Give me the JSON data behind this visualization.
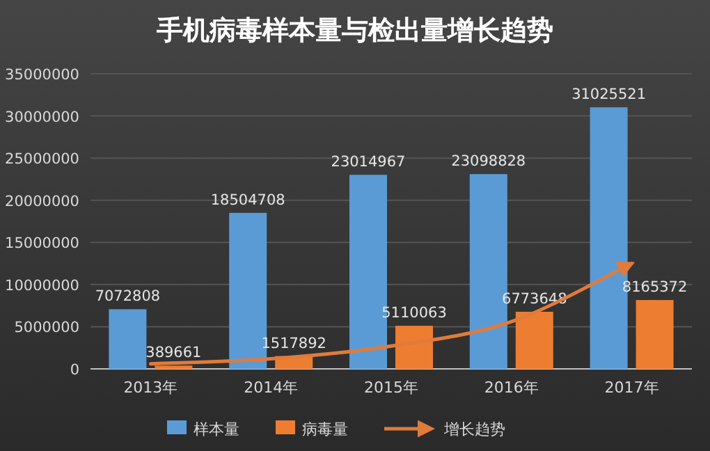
{
  "chart_data": {
    "type": "bar",
    "title": "手机病毒样本量与检出量增长趋势",
    "categories": [
      "2013年",
      "2014年",
      "2015年",
      "2016年",
      "2017年"
    ],
    "series": [
      {
        "name": "样本量",
        "color": "#5b9bd5",
        "values": [
          7072808,
          18504708,
          23014967,
          23098828,
          31025521
        ],
        "value_labels": [
          "7072808",
          "18504708",
          "23014967",
          "23098828",
          "31025521"
        ]
      },
      {
        "name": "病毒量",
        "color": "#ed7d31",
        "values": [
          389661,
          1517892,
          5110063,
          6773648,
          8165372
        ],
        "value_labels": [
          "389661",
          "1517892",
          "5110063",
          "6773648",
          "8165372"
        ]
      },
      {
        "name": "增长趋势",
        "type": "line",
        "color": "#e07b3c",
        "values": [
          600000,
          1200000,
          2700000,
          5600000,
          12500000
        ]
      }
    ],
    "ylim": [
      0,
      35000000
    ],
    "yticks": [
      0,
      5000000,
      10000000,
      15000000,
      20000000,
      25000000,
      30000000,
      35000000
    ],
    "grid": "y",
    "legend": "bottom"
  }
}
